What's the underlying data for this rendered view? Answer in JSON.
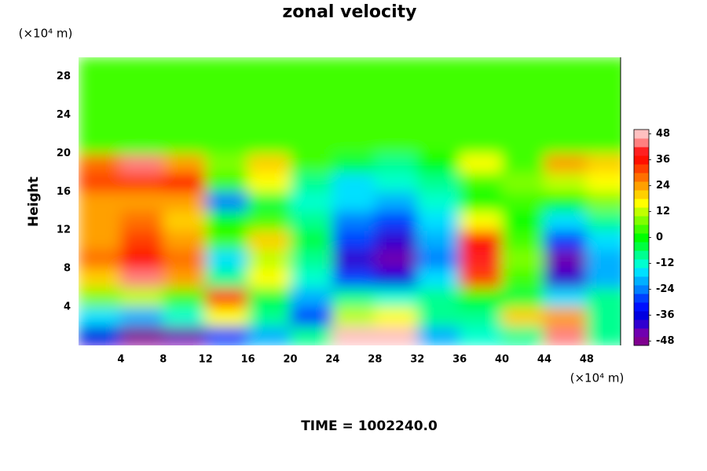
{
  "chart_data": {
    "type": "contour",
    "title": "zonal velocity",
    "ylabel": "Height",
    "y_unit_label": "(×10⁴ m)",
    "x_unit_label": "(×10⁴ m)",
    "footer": "TIME = 1002240.0",
    "xlim": [
      0,
      51.2
    ],
    "ylim": [
      0,
      30
    ],
    "xticks": [
      4,
      8,
      12,
      16,
      20,
      24,
      28,
      32,
      36,
      40,
      44,
      48
    ],
    "yticks": [
      4,
      8,
      12,
      16,
      20,
      24,
      28
    ],
    "x": [
      2,
      6,
      10,
      14,
      18,
      22,
      26,
      30,
      34,
      38,
      42,
      46,
      50
    ],
    "y": [
      1,
      3,
      5,
      7,
      9,
      11,
      13,
      15,
      17,
      19,
      21,
      23,
      25,
      27,
      29
    ],
    "z": [
      [
        -36,
        -48,
        -44,
        -30,
        -20,
        -10,
        48,
        48,
        -20,
        -12,
        -8,
        44,
        -10
      ],
      [
        -16,
        -20,
        -12,
        16,
        -10,
        -30,
        12,
        16,
        -10,
        -8,
        20,
        24,
        -8
      ],
      [
        8,
        12,
        4,
        30,
        -4,
        -20,
        -10,
        -12,
        -8,
        0,
        -4,
        -16,
        -8
      ],
      [
        20,
        44,
        24,
        -8,
        16,
        -14,
        -30,
        -36,
        -16,
        32,
        4,
        -40,
        -20
      ],
      [
        28,
        36,
        28,
        -16,
        12,
        -10,
        -40,
        -46,
        -24,
        40,
        8,
        -44,
        -22
      ],
      [
        24,
        30,
        24,
        4,
        20,
        -4,
        -30,
        -40,
        -20,
        36,
        4,
        -30,
        -18
      ],
      [
        22,
        28,
        20,
        0,
        4,
        -8,
        -24,
        -30,
        -16,
        16,
        0,
        -16,
        -10
      ],
      [
        24,
        22,
        24,
        -24,
        -4,
        -14,
        -16,
        -20,
        -12,
        0,
        4,
        0,
        8
      ],
      [
        30,
        32,
        34,
        4,
        16,
        -8,
        -18,
        -14,
        -8,
        4,
        8,
        12,
        16
      ],
      [
        28,
        44,
        24,
        8,
        20,
        4,
        -4,
        -8,
        0,
        16,
        4,
        24,
        20
      ],
      [
        4,
        4,
        2,
        2,
        2,
        2,
        2,
        2,
        2,
        2,
        2,
        2,
        2
      ],
      [
        2,
        2,
        2,
        2,
        2,
        2,
        2,
        2,
        2,
        2,
        2,
        2,
        2
      ],
      [
        2,
        2,
        2,
        2,
        2,
        2,
        2,
        2,
        2,
        2,
        2,
        2,
        2
      ],
      [
        2,
        2,
        2,
        2,
        2,
        2,
        2,
        2,
        2,
        2,
        2,
        2,
        2
      ],
      [
        2,
        2,
        2,
        2,
        2,
        2,
        2,
        2,
        2,
        2,
        2,
        2,
        2
      ]
    ],
    "clim": [
      -50,
      50
    ],
    "cticks": [
      48,
      36,
      24,
      12,
      0,
      -12,
      -24,
      -36,
      -48
    ],
    "colors": [
      "#800090",
      "#7000b0",
      "#3000d0",
      "#0000e0",
      "#0010ff",
      "#0040ff",
      "#0080ff",
      "#00b0ff",
      "#00e0ff",
      "#00ffd0",
      "#00ff90",
      "#00ff40",
      "#00ff00",
      "#40ff00",
      "#80ff00",
      "#c0ff00",
      "#ffff00",
      "#ffd000",
      "#ffa000",
      "#ff7000",
      "#ff4000",
      "#ff1000",
      "#ff2020",
      "#ff8080",
      "#ffc0c0"
    ]
  }
}
